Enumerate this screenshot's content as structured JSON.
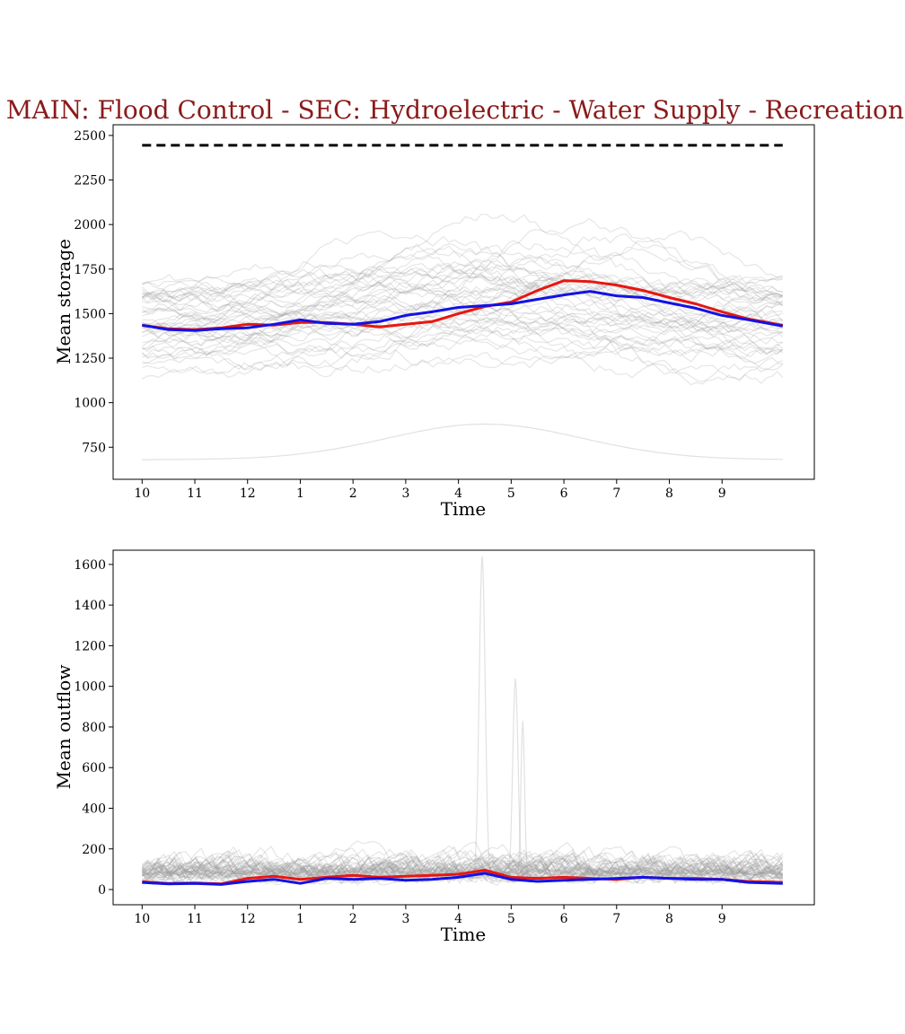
{
  "chart_data": [
    {
      "type": "line",
      "title": "MAIN: Flood Control - SEC: Hydroelectric - Water Supply - Recreation -",
      "xlabel": "Time",
      "ylabel": "Mean storage",
      "x_tick_labels": [
        "10",
        "11",
        "12",
        "1",
        "2",
        "3",
        "4",
        "5",
        "6",
        "7",
        "8",
        "9"
      ],
      "x_tick_positions": [
        0,
        1,
        2,
        3,
        4,
        5,
        6,
        7,
        8,
        9,
        10,
        11
      ],
      "xlim": [
        -0.55,
        12.75
      ],
      "ylim": [
        570,
        2560
      ],
      "y_ticks": [
        750,
        1000,
        1250,
        1500,
        1750,
        2000,
        2250,
        2500
      ],
      "grid": false,
      "reference_line": {
        "style": "dashed",
        "color": "#000000",
        "y": 2445,
        "x_range": [
          0,
          12.15
        ]
      },
      "background_series": {
        "color": "#9a9a9a",
        "count": 60,
        "description_only": true
      },
      "series": [
        {
          "color": "#e8170f",
          "x": [
            0,
            0.5,
            1,
            1.5,
            2,
            2.5,
            3,
            3.5,
            4,
            4.5,
            5,
            5.5,
            6,
            6.5,
            7,
            7.5,
            8,
            8.5,
            9,
            9.5,
            10,
            10.5,
            11,
            11.5,
            12.15
          ],
          "values": [
            1435,
            1415,
            1410,
            1420,
            1440,
            1435,
            1450,
            1450,
            1440,
            1425,
            1440,
            1455,
            1500,
            1540,
            1565,
            1630,
            1685,
            1680,
            1660,
            1630,
            1590,
            1555,
            1510,
            1470,
            1435
          ]
        },
        {
          "color": "#1212e6",
          "x": [
            0,
            0.5,
            1,
            1.5,
            2,
            2.5,
            3,
            3.5,
            4,
            4.5,
            5,
            5.5,
            6,
            6.5,
            7,
            7.5,
            8,
            8.5,
            9,
            9.5,
            10,
            10.5,
            11,
            11.5,
            12.15
          ],
          "values": [
            1435,
            1410,
            1405,
            1415,
            1420,
            1440,
            1465,
            1445,
            1440,
            1455,
            1490,
            1510,
            1535,
            1545,
            1555,
            1580,
            1605,
            1625,
            1600,
            1590,
            1560,
            1530,
            1490,
            1465,
            1430
          ]
        }
      ]
    },
    {
      "type": "line",
      "title": "",
      "xlabel": "Time",
      "ylabel": "Mean outflow",
      "x_tick_labels": [
        "10",
        "11",
        "12",
        "1",
        "2",
        "3",
        "4",
        "5",
        "6",
        "7",
        "8",
        "9"
      ],
      "x_tick_positions": [
        0,
        1,
        2,
        3,
        4,
        5,
        6,
        7,
        8,
        9,
        10,
        11
      ],
      "xlim": [
        -0.55,
        12.75
      ],
      "ylim": [
        -75,
        1670
      ],
      "y_ticks": [
        0,
        200,
        400,
        600,
        800,
        1000,
        1200,
        1400,
        1600
      ],
      "grid": false,
      "background_series": {
        "color": "#9a9a9a",
        "count": 60,
        "description_only": true
      },
      "series": [
        {
          "color": "#e8170f",
          "x": [
            0,
            0.5,
            1,
            1.5,
            2,
            2.5,
            3,
            3.5,
            4,
            4.5,
            5,
            5.5,
            6,
            6.5,
            7,
            7.5,
            8,
            8.5,
            9,
            9.5,
            10,
            10.5,
            11,
            11.5,
            12.15
          ],
          "values": [
            38,
            30,
            32,
            28,
            55,
            65,
            50,
            60,
            70,
            60,
            65,
            70,
            75,
            95,
            60,
            55,
            60,
            55,
            50,
            60,
            55,
            55,
            50,
            40,
            35
          ]
        },
        {
          "color": "#1212e6",
          "x": [
            0,
            0.5,
            1,
            1.5,
            2,
            2.5,
            3,
            3.5,
            4,
            4.5,
            5,
            5.5,
            6,
            6.5,
            7,
            7.5,
            8,
            8.5,
            9,
            9.5,
            10,
            10.5,
            11,
            11.5,
            12.15
          ],
          "values": [
            35,
            28,
            30,
            25,
            40,
            50,
            30,
            55,
            50,
            55,
            45,
            50,
            60,
            80,
            50,
            40,
            45,
            50,
            55,
            60,
            55,
            50,
            50,
            35,
            30
          ]
        }
      ]
    }
  ]
}
